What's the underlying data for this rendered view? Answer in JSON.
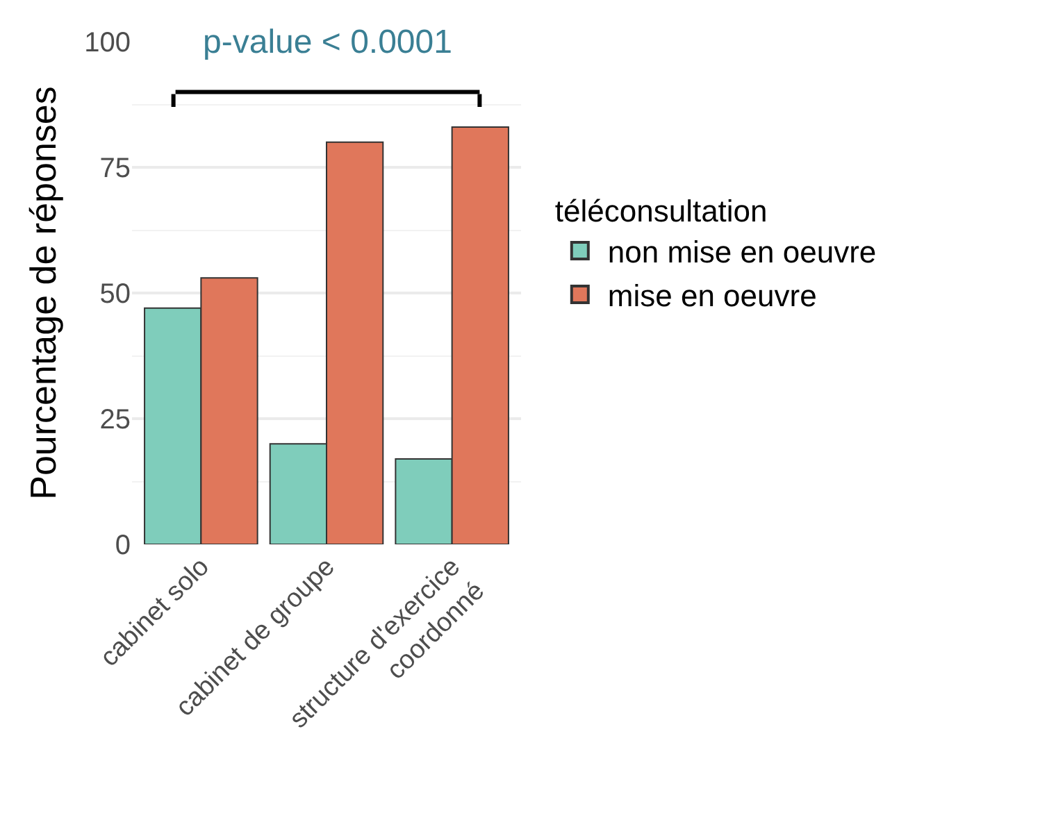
{
  "chart_data": {
    "type": "bar",
    "categories": [
      "cabinet solo",
      "cabinet de groupe",
      "structure d'exercice\ncoordonné"
    ],
    "series": [
      {
        "name": "non mise en oeuvre",
        "color": "#7fcdbb",
        "values": [
          47,
          20,
          17
        ]
      },
      {
        "name": "mise en oeuvre",
        "color": "#e0775b",
        "values": [
          53,
          80,
          83
        ]
      }
    ],
    "ylabel": "Pourcentage de réponses",
    "legend_title": "téléconsultation",
    "annotations": [
      "p-value < 0.0001"
    ],
    "ylim": [
      0,
      100
    ],
    "yticks": [
      0,
      25,
      50,
      75,
      100
    ],
    "grid": "y",
    "legend": "right"
  }
}
